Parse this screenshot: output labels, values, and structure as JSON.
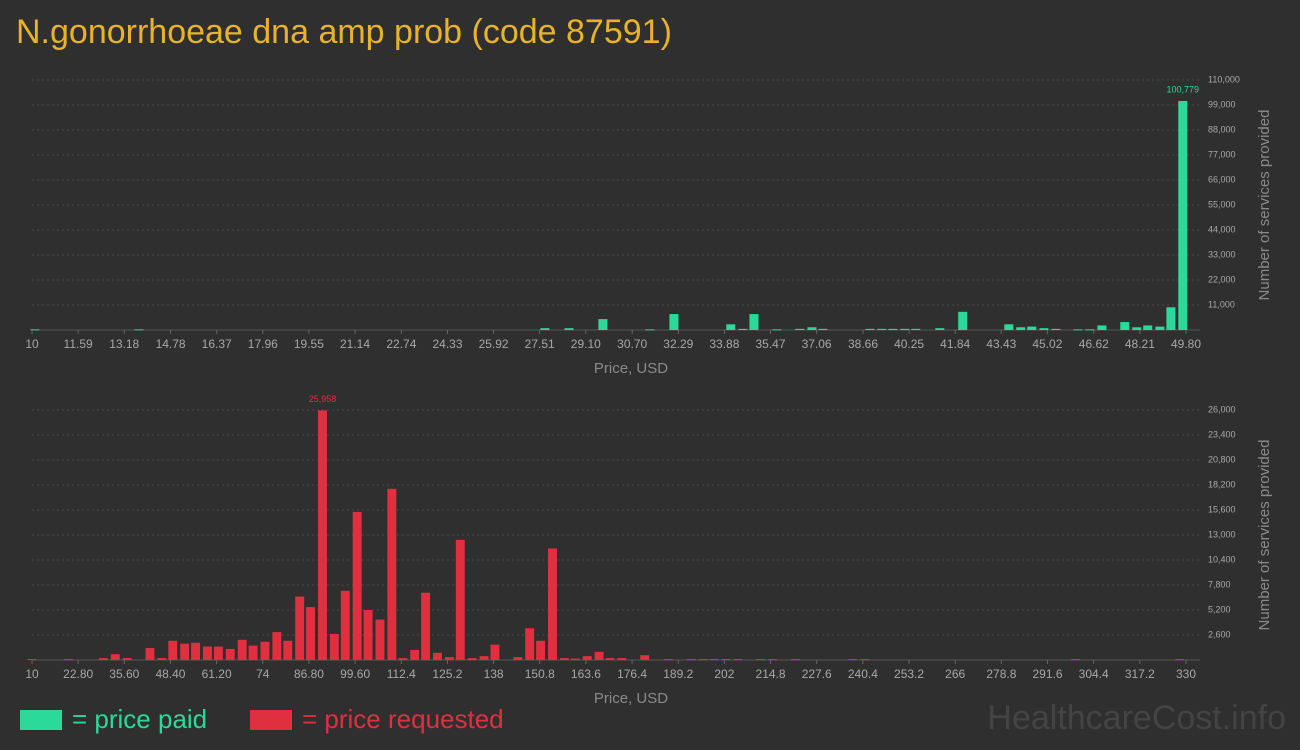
{
  "title": "N.gonorrhoeae dna amp prob (code 87591)",
  "watermark": "HealthcareCost.info",
  "chart_data": [
    {
      "type": "bar",
      "x_label": "Price, USD",
      "y_label": "Number of services provided",
      "grid": true,
      "xlim": [
        10,
        49.8
      ],
      "xticks": [
        10,
        11.59,
        13.18,
        14.78,
        16.37,
        17.96,
        19.55,
        21.14,
        22.74,
        24.33,
        25.92,
        27.51,
        {
          "value": 29.1,
          "label": "29.10"
        },
        {
          "value": 30.7,
          "label": "30.70"
        },
        32.29,
        33.88,
        35.47,
        37.06,
        38.66,
        40.25,
        41.84,
        43.43,
        45.02,
        46.62,
        48.21,
        {
          "value": 49.8,
          "label": "49.80"
        }
      ],
      "ylim": [
        0,
        110000
      ],
      "yticks": [
        {
          "value": 11000,
          "label": "11,000"
        },
        {
          "value": 22000,
          "label": "22,000"
        },
        {
          "value": 33000,
          "label": "33,000"
        },
        {
          "value": 44000,
          "label": "44,000"
        },
        {
          "value": 55000,
          "label": "55,000"
        },
        {
          "value": 66000,
          "label": "66,000"
        },
        {
          "value": 77000,
          "label": "77,000"
        },
        {
          "value": 88000,
          "label": "88,000"
        },
        {
          "value": 99000,
          "label": "99,000"
        },
        {
          "value": 110000,
          "label": "110,000"
        }
      ],
      "series": [
        {
          "name": "= price paid",
          "color": "#2bd99a",
          "x": [
            10.1,
            13.69,
            27.69,
            28.52,
            29.69,
            31.31,
            32.14,
            34.1,
            34.52,
            34.9,
            35.69,
            36.48,
            36.9,
            37.28,
            38.9,
            39.31,
            39.69,
            40.1,
            40.48,
            41.31,
            42.1,
            43.69,
            44.1,
            44.48,
            44.9,
            45.31,
            46.07,
            46.48,
            46.9,
            47.69,
            48.1,
            48.48,
            48.9,
            49.28,
            49.69
          ],
          "values": [
            300,
            300,
            800,
            800,
            4800,
            300,
            7000,
            2500,
            500,
            7000,
            300,
            500,
            1200,
            500,
            500,
            500,
            500,
            500,
            500,
            800,
            8000,
            2500,
            1200,
            1500,
            800,
            500,
            300,
            300,
            2000,
            3500,
            1200,
            2000,
            1500,
            10000,
            100779
          ],
          "value_labels": [
            null,
            null,
            null,
            null,
            null,
            null,
            null,
            null,
            null,
            null,
            null,
            null,
            null,
            null,
            null,
            null,
            null,
            null,
            null,
            null,
            null,
            null,
            null,
            null,
            null,
            null,
            null,
            null,
            null,
            null,
            null,
            null,
            null,
            null,
            "100,779"
          ]
        }
      ]
    },
    {
      "type": "bar",
      "x_label": "Price, USD",
      "y_label": "Number of services provided",
      "grid": true,
      "xlim": [
        10,
        330
      ],
      "xticks": [
        10,
        {
          "value": 22.8,
          "label": "22.80"
        },
        {
          "value": 35.6,
          "label": "35.60"
        },
        {
          "value": 48.4,
          "label": "48.40"
        },
        {
          "value": 61.2,
          "label": "61.20"
        },
        74,
        {
          "value": 86.8,
          "label": "86.80"
        },
        {
          "value": 99.6,
          "label": "99.60"
        },
        112.4,
        125.2,
        138,
        150.8,
        163.6,
        176.4,
        189.2,
        202,
        214.8,
        227.6,
        240.4,
        253.2,
        266,
        278.8,
        291.6,
        304.4,
        317.2,
        330
      ],
      "ylim": [
        0,
        26000
      ],
      "yticks": [
        {
          "value": 2600,
          "label": "2,600"
        },
        {
          "value": 5200,
          "label": "5,200"
        },
        {
          "value": 7800,
          "label": "7,800"
        },
        {
          "value": 10400,
          "label": "10,400"
        },
        {
          "value": 13000,
          "label": "13,000"
        },
        {
          "value": 15600,
          "label": "15,600"
        },
        {
          "value": 18200,
          "label": "18,200"
        },
        {
          "value": 20800,
          "label": "20,800"
        },
        {
          "value": 23400,
          "label": "23,400"
        },
        {
          "value": 26000,
          "label": "26,000"
        }
      ],
      "series": [
        {
          "name": "= price requested",
          "color": "#e0303f",
          "x": [
            10,
            20.17,
            29.79,
            33.09,
            36.39,
            42.71,
            46.01,
            49.04,
            52.34,
            55.36,
            58.66,
            61.68,
            64.98,
            68.28,
            71.31,
            74.6,
            77.9,
            80.93,
            84.23,
            87.25,
            90.55,
            93.85,
            96.87,
            100.17,
            103.2,
            106.49,
            109.79,
            112.82,
            116.12,
            119.14,
            122.44,
            125.74,
            128.76,
            132.06,
            135.36,
            138.38,
            144.71,
            148.01,
            151.03,
            154.33,
            157.63,
            160.65,
            163.95,
            167.25,
            170.28,
            173.57,
            179.9,
            186.5,
            192.82,
            196.12,
            199.14,
            202.44,
            205.74,
            212.06,
            215.36,
            221.68,
            237.63,
            240.93,
            299.39,
            328.26
          ],
          "values": [
            100,
            100,
            200,
            600,
            200,
            1250,
            200,
            2000,
            1700,
            1800,
            1400,
            1400,
            1150,
            2100,
            1500,
            1900,
            2900,
            2000,
            6600,
            5500,
            25958,
            2700,
            7200,
            15400,
            5200,
            4200,
            17800,
            200,
            1050,
            7000,
            750,
            300,
            12500,
            200,
            400,
            1600,
            300,
            3300,
            2000,
            11600,
            200,
            150,
            400,
            850,
            200,
            200,
            500,
            100,
            100,
            100,
            100,
            100,
            100,
            100,
            100,
            100,
            100,
            100,
            100,
            100
          ],
          "value_labels": [
            null,
            null,
            null,
            null,
            null,
            null,
            null,
            null,
            null,
            null,
            null,
            null,
            null,
            null,
            null,
            null,
            null,
            null,
            null,
            null,
            "25,958",
            null,
            null,
            null,
            null,
            null,
            null,
            null,
            null,
            null,
            null,
            null,
            null,
            null,
            null,
            null,
            null,
            null,
            null,
            null,
            null,
            null,
            null,
            null,
            null,
            null,
            null,
            null,
            null,
            null,
            null,
            null,
            null,
            null,
            null,
            null,
            null,
            null,
            null,
            null
          ]
        }
      ]
    }
  ]
}
